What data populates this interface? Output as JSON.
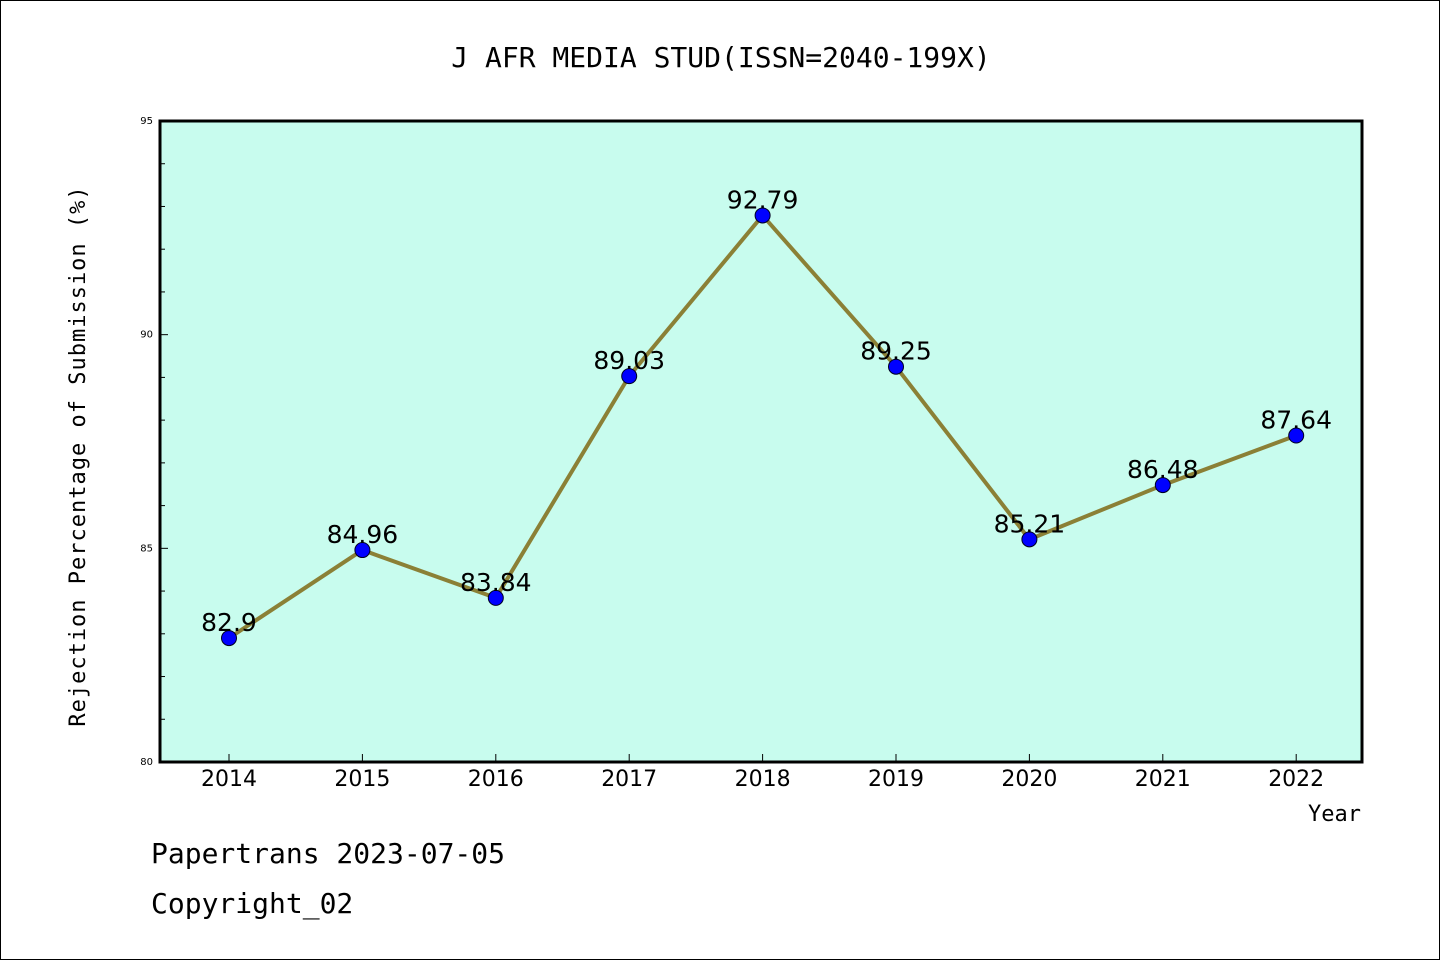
{
  "chart_data": {
    "type": "line",
    "title": "J AFR MEDIA STUD(ISSN=2040-199X)",
    "xlabel": "Year",
    "ylabel": "Rejection Percentage of Submission (%)",
    "categories": [
      "2014",
      "2015",
      "2016",
      "2017",
      "2018",
      "2019",
      "2020",
      "2021",
      "2022"
    ],
    "values": [
      82.9,
      84.96,
      83.84,
      89.03,
      92.79,
      89.25,
      85.21,
      86.48,
      87.64
    ],
    "data_labels": [
      "82.9",
      "84.96",
      "83.84",
      "89.03",
      "92.79",
      "89.25",
      "85.21",
      "86.48",
      "87.64"
    ],
    "ylim": [
      80,
      95
    ],
    "yticks": [
      "80",
      "85",
      "90",
      "95"
    ],
    "grid": false,
    "colors": {
      "plot_background": "#c8fcee",
      "line": "#8b8036",
      "marker": "#0000ff"
    }
  },
  "footer": {
    "line1": "Papertrans 2023-07-05",
    "line2": "Copyright_02"
  }
}
